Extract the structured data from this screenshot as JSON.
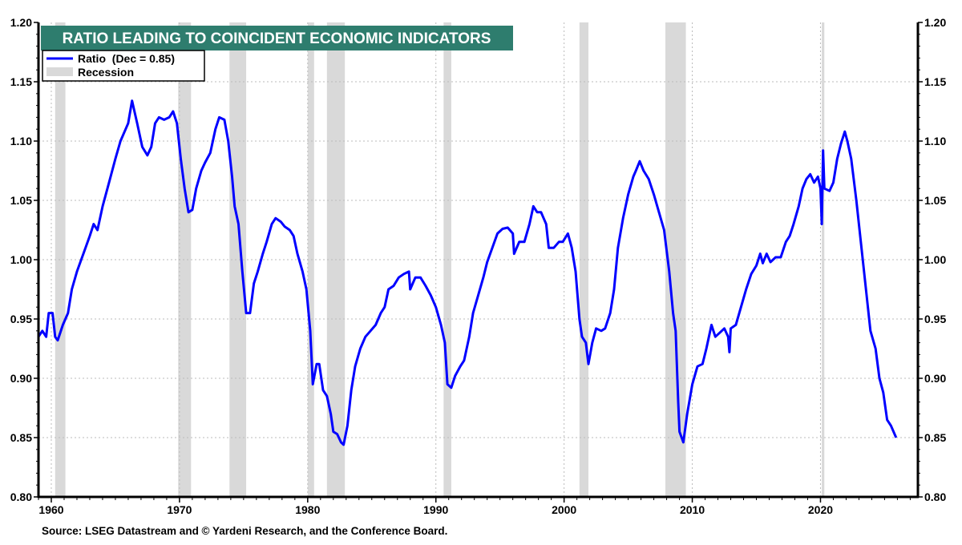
{
  "chart_data": {
    "type": "line",
    "title": "RATIO LEADING TO COINCIDENT ECONOMIC INDICATORS",
    "source": "Source: LSEG Datastream and © Yardeni Research, and the Conference Board.",
    "xlabel": "",
    "ylabel": "",
    "xlim": [
      1959,
      2027.6
    ],
    "ylim": [
      0.8,
      1.2
    ],
    "x_ticks": [
      "1960",
      "1970",
      "1980",
      "1990",
      "2000",
      "2010",
      "2020"
    ],
    "y_ticks": [
      "0.80",
      "0.85",
      "0.90",
      "0.95",
      "1.00",
      "1.05",
      "1.10",
      "1.15",
      "1.20"
    ],
    "grid": true,
    "legend_placement": "top-left",
    "legend": [
      {
        "label": "Ratio  (Dec = 0.85)",
        "kind": "line"
      },
      {
        "label": "Recession",
        "kind": "shade"
      }
    ],
    "colors": {
      "line": "#0000ff",
      "recession": "#d9d9d9",
      "title_bg": "#2e7d6e",
      "title_text": "#ffffff"
    },
    "recessions": [
      [
        1960.3,
        1961.1
      ],
      [
        1969.9,
        1970.9
      ],
      [
        1973.9,
        1975.2
      ],
      [
        1980.0,
        1980.5
      ],
      [
        1981.5,
        1982.9
      ],
      [
        1990.6,
        1991.2
      ],
      [
        2001.2,
        2001.9
      ],
      [
        2007.9,
        2009.5
      ],
      [
        2020.1,
        2020.3
      ]
    ],
    "series": [
      {
        "name": "Ratio",
        "x": [
          1959.0,
          1959.3,
          1959.6,
          1959.8,
          1960.1,
          1960.3,
          1960.5,
          1960.9,
          1961.3,
          1961.6,
          1962.0,
          1962.5,
          1963.0,
          1963.3,
          1963.6,
          1964.0,
          1964.5,
          1965.0,
          1965.4,
          1965.8,
          1966.0,
          1966.3,
          1966.7,
          1967.1,
          1967.5,
          1967.8,
          1968.1,
          1968.4,
          1968.8,
          1969.2,
          1969.5,
          1969.8,
          1970.1,
          1970.4,
          1970.7,
          1971.0,
          1971.3,
          1971.7,
          1972.0,
          1972.4,
          1972.8,
          1973.1,
          1973.5,
          1973.8,
          1974.1,
          1974.3,
          1974.6,
          1974.9,
          1975.2,
          1975.5,
          1975.8,
          1976.1,
          1976.5,
          1976.8,
          1977.2,
          1977.5,
          1977.9,
          1978.2,
          1978.6,
          1978.9,
          1979.2,
          1979.6,
          1979.9,
          1980.2,
          1980.4,
          1980.7,
          1980.9,
          1981.2,
          1981.5,
          1981.8,
          1982.0,
          1982.3,
          1982.6,
          1982.8,
          1983.1,
          1983.4,
          1983.7,
          1984.1,
          1984.5,
          1984.9,
          1985.3,
          1985.7,
          1986.0,
          1986.3,
          1986.7,
          1987.1,
          1987.5,
          1987.9,
          1988.0,
          1988.4,
          1988.8,
          1989.2,
          1989.6,
          1990.0,
          1990.4,
          1990.7,
          1990.9,
          1991.2,
          1991.5,
          1991.9,
          1992.2,
          1992.6,
          1992.9,
          1993.3,
          1993.7,
          1994.0,
          1994.4,
          1994.8,
          1995.2,
          1995.6,
          1996.0,
          1996.1,
          1996.5,
          1996.9,
          1997.3,
          1997.6,
          1997.9,
          1998.2,
          1998.6,
          1998.8,
          1999.2,
          1999.6,
          1999.9,
          2000.3,
          2000.6,
          2000.9,
          2001.2,
          2001.4,
          2001.7,
          2001.9,
          2002.2,
          2002.5,
          2002.9,
          2003.2,
          2003.6,
          2003.9,
          2004.2,
          2004.6,
          2005.0,
          2005.4,
          2005.6,
          2005.9,
          2006.2,
          2006.6,
          2007.0,
          2007.4,
          2007.8,
          2008.2,
          2008.5,
          2008.7,
          2008.9,
          2009.0,
          2009.3,
          2009.6,
          2010.0,
          2010.4,
          2010.8,
          2011.1,
          2011.5,
          2011.8,
          2012.1,
          2012.5,
          2012.8,
          2012.9,
          2013.0,
          2013.4,
          2013.8,
          2014.2,
          2014.6,
          2015.0,
          2015.3,
          2015.5,
          2015.8,
          2016.1,
          2016.5,
          2016.9,
          2017.3,
          2017.6,
          2017.9,
          2018.3,
          2018.6,
          2018.9,
          2019.2,
          2019.5,
          2019.8,
          2020.0,
          2020.1,
          2020.2,
          2020.3,
          2020.7,
          2021.0,
          2021.3,
          2021.6,
          2021.9,
          2022.1,
          2022.4,
          2022.8,
          2023.2,
          2023.6,
          2023.9,
          2024.3,
          2024.6,
          2024.9,
          2025.2,
          2025.5,
          2025.9
        ],
        "y": [
          0.935,
          0.94,
          0.935,
          0.955,
          0.955,
          0.935,
          0.932,
          0.945,
          0.955,
          0.975,
          0.99,
          1.005,
          1.02,
          1.03,
          1.025,
          1.045,
          1.065,
          1.085,
          1.1,
          1.11,
          1.115,
          1.134,
          1.115,
          1.095,
          1.088,
          1.095,
          1.115,
          1.12,
          1.118,
          1.12,
          1.125,
          1.115,
          1.085,
          1.06,
          1.04,
          1.042,
          1.06,
          1.075,
          1.082,
          1.09,
          1.11,
          1.12,
          1.118,
          1.1,
          1.07,
          1.045,
          1.03,
          0.99,
          0.955,
          0.955,
          0.98,
          0.99,
          1.005,
          1.015,
          1.03,
          1.035,
          1.032,
          1.028,
          1.025,
          1.02,
          1.005,
          0.99,
          0.975,
          0.94,
          0.895,
          0.912,
          0.912,
          0.89,
          0.885,
          0.87,
          0.855,
          0.853,
          0.846,
          0.844,
          0.86,
          0.89,
          0.91,
          0.925,
          0.935,
          0.94,
          0.945,
          0.955,
          0.96,
          0.975,
          0.978,
          0.985,
          0.988,
          0.99,
          0.975,
          0.985,
          0.985,
          0.978,
          0.97,
          0.96,
          0.945,
          0.93,
          0.895,
          0.892,
          0.902,
          0.91,
          0.915,
          0.935,
          0.955,
          0.97,
          0.985,
          0.998,
          1.01,
          1.022,
          1.026,
          1.027,
          1.022,
          1.005,
          1.015,
          1.015,
          1.03,
          1.045,
          1.04,
          1.04,
          1.03,
          1.01,
          1.01,
          1.015,
          1.015,
          1.022,
          1.01,
          0.99,
          0.95,
          0.935,
          0.93,
          0.912,
          0.93,
          0.942,
          0.94,
          0.942,
          0.955,
          0.975,
          1.01,
          1.035,
          1.055,
          1.07,
          1.075,
          1.083,
          1.075,
          1.068,
          1.055,
          1.04,
          1.025,
          0.99,
          0.955,
          0.94,
          0.88,
          0.855,
          0.846,
          0.87,
          0.895,
          0.91,
          0.912,
          0.925,
          0.945,
          0.935,
          0.938,
          0.942,
          0.935,
          0.922,
          0.942,
          0.945,
          0.96,
          0.975,
          0.988,
          0.995,
          1.005,
          0.997,
          1.005,
          0.998,
          1.002,
          1.002,
          1.015,
          1.02,
          1.03,
          1.045,
          1.06,
          1.068,
          1.072,
          1.065,
          1.07,
          1.06,
          1.03,
          1.092,
          1.06,
          1.058,
          1.065,
          1.085,
          1.098,
          1.108,
          1.1,
          1.085,
          1.05,
          1.01,
          0.97,
          0.94,
          0.925,
          0.9,
          0.888,
          0.865,
          0.86,
          0.85
        ]
      }
    ]
  }
}
